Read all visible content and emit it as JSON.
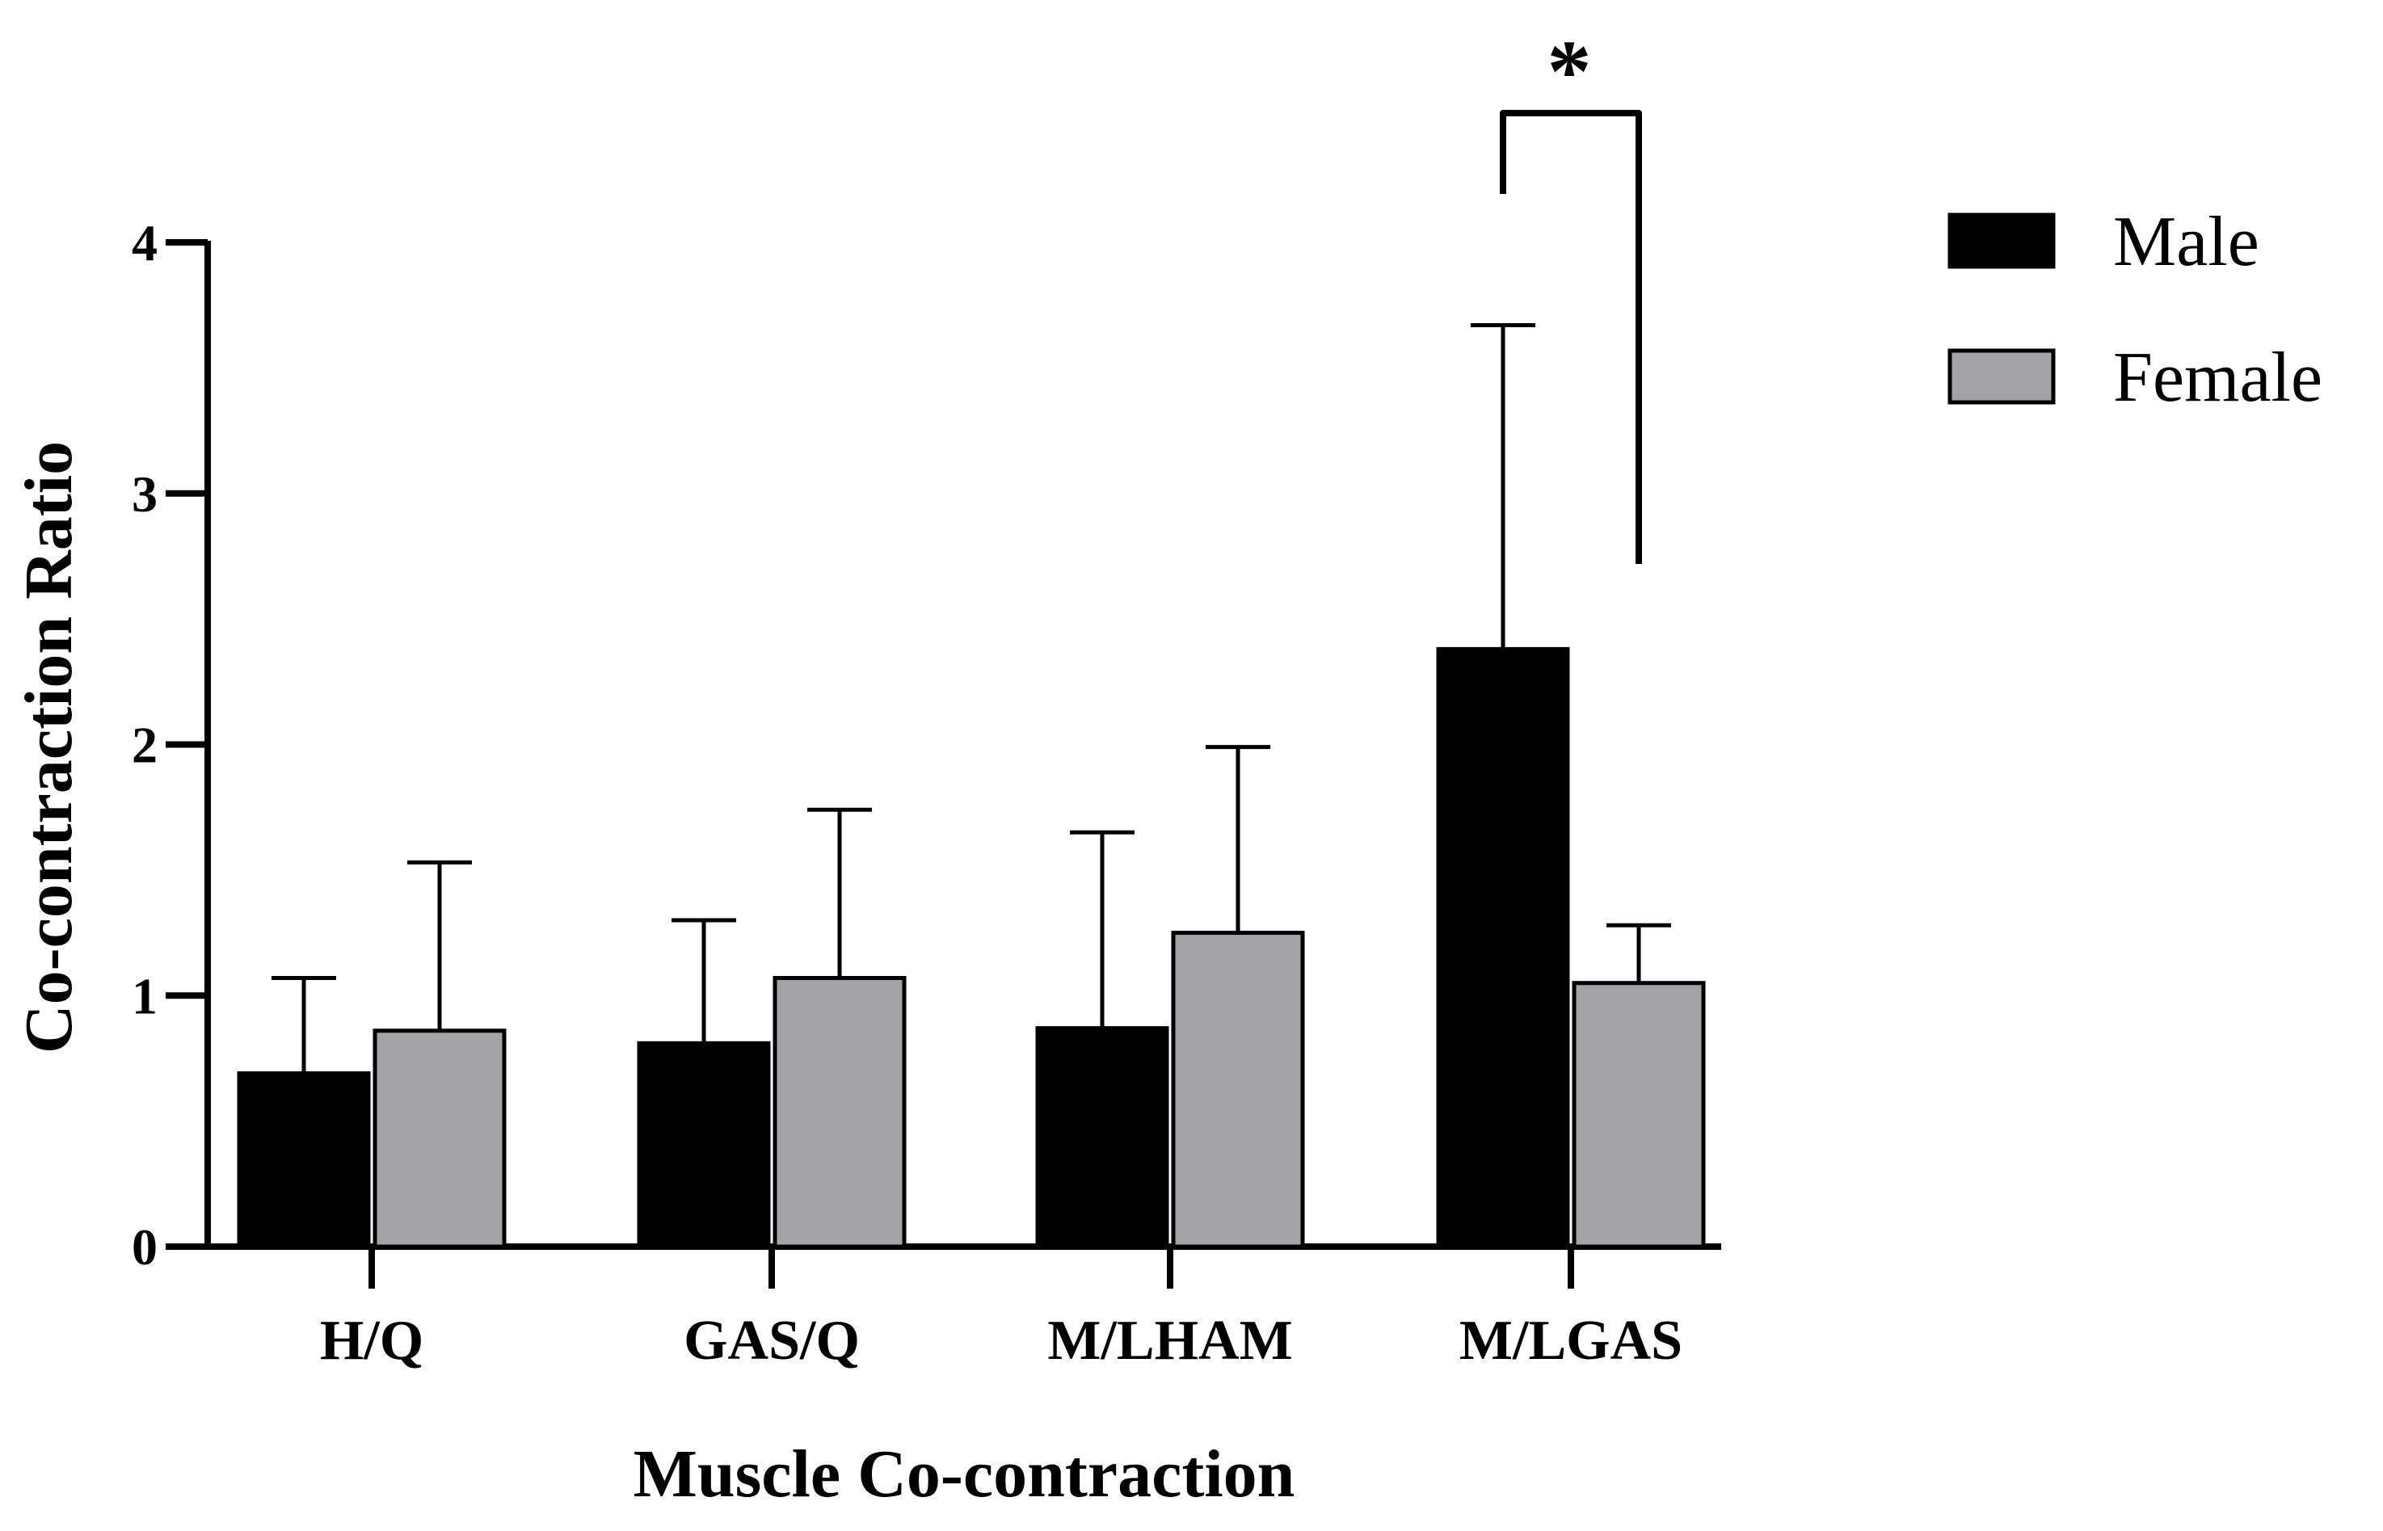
{
  "chart_data": {
    "type": "bar",
    "title": "",
    "xlabel": "Muscle Co-contraction",
    "ylabel": "Co-contraction Ratio",
    "ylim": [
      0,
      4
    ],
    "yticks": [
      "0",
      "1",
      "2",
      "3",
      "4"
    ],
    "categories": [
      "H/Q",
      "GAS/Q",
      "M/LHAM",
      "M/LGAS"
    ],
    "series": [
      {
        "name": "Male",
        "color": "#000000",
        "values": [
          0.69,
          0.81,
          0.87,
          2.38
        ],
        "errors": [
          0.38,
          0.49,
          0.78,
          1.29
        ]
      },
      {
        "name": "Female",
        "color": "#a3a3a7",
        "values": [
          0.86,
          1.07,
          1.25,
          1.05
        ],
        "errors": [
          0.67,
          0.67,
          0.74,
          0.23
        ]
      }
    ],
    "legend_position": "top-right",
    "grid": false,
    "annotations": [
      {
        "text": "*",
        "category": "M/LGAS",
        "between": [
          "Male",
          "Female"
        ],
        "y": 4.5
      }
    ]
  }
}
